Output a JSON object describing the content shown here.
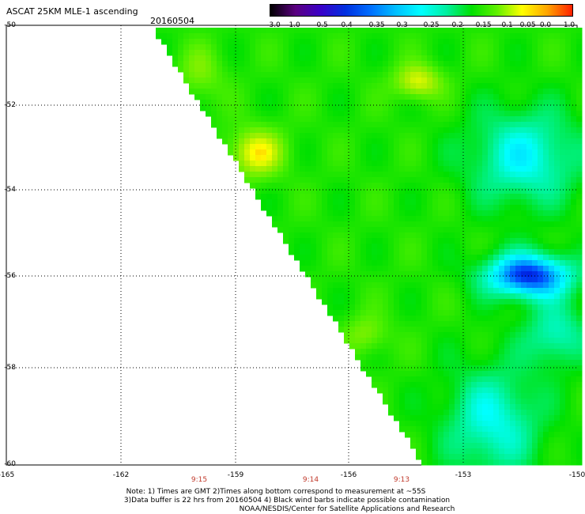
{
  "header": {
    "title": "ASCAT 25KM MLE-1 ascending",
    "date": "20160504"
  },
  "colorbar": {
    "ticks": [
      "-3.0",
      "-1.0",
      "-0.5",
      "-0.4",
      "-0.35",
      "-0.3",
      "-0.25",
      "-0.2",
      "-0.15",
      "-0.1",
      "-0.05",
      "0.0",
      "1.0"
    ],
    "colors": [
      "#000000",
      "#5b0080",
      "#3a00c8",
      "#0030e0",
      "#0070ff",
      "#00c0ff",
      "#00ffff",
      "#00f0a0",
      "#00e000",
      "#60f000",
      "#ffff00",
      "#ffa500",
      "#ff2000"
    ]
  },
  "axes": {
    "lat_labels": [
      "-50",
      "-52",
      "-54",
      "-56",
      "-58",
      "-60"
    ],
    "lon_labels": [
      "-165",
      "-162",
      "-159",
      "-156",
      "-153",
      "-150"
    ]
  },
  "times": [
    "9:15",
    "9:14",
    "9:13"
  ],
  "notes": [
    "Note: 1) Times are GMT 2)Times along bottom correspond to measurement at ~55S",
    "3)Data buffer is 22 hrs from 20160504 4) Black wind barbs indicate possible contamination",
    "NOAA/NESDIS/Center for Satellite Applications and Research"
  ]
}
